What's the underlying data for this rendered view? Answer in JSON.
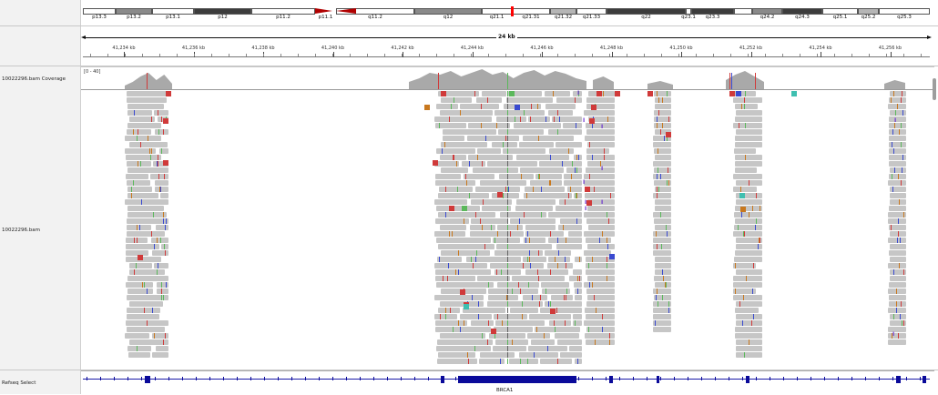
{
  "tracks": {
    "coverage_label": "10022296.bam Coverage",
    "coverage_range": "[0 - 40]",
    "alignment_label": "10022296.bam",
    "refseq_label": "Refseq Select"
  },
  "ideogram": {
    "bands": [
      {
        "label": "p13.3",
        "start": 0,
        "end": 36,
        "color": "#ffffff"
      },
      {
        "label": "p13.2",
        "start": 36,
        "end": 76,
        "color": "#8a8a8a"
      },
      {
        "label": "p13.1",
        "start": 76,
        "end": 122,
        "color": "#ffffff"
      },
      {
        "label": "p12",
        "start": 122,
        "end": 185,
        "color": "#3c3c3c"
      },
      {
        "label": "p11.2",
        "start": 185,
        "end": 255,
        "color": "#ffffff"
      },
      {
        "label": "p11.1",
        "start": 255,
        "end": 278,
        "color": "#b00000"
      },
      {
        "label": "q11.2",
        "start": 278,
        "end": 364,
        "color": "#ffffff"
      },
      {
        "label": "q12",
        "start": 364,
        "end": 438,
        "color": "#8a8a8a"
      },
      {
        "label": "q21.1",
        "start": 438,
        "end": 471,
        "color": "#ffffff"
      },
      {
        "label": "q21.31",
        "start": 471,
        "end": 513,
        "color": "#ffffff"
      },
      {
        "label": "q21.32",
        "start": 513,
        "end": 542,
        "color": "#b5b5b5"
      },
      {
        "label": "q21.33",
        "start": 542,
        "end": 575,
        "color": "#ffffff"
      },
      {
        "label": "q22",
        "start": 575,
        "end": 662,
        "color": "#3c3c3c"
      },
      {
        "label": "q23.1",
        "start": 662,
        "end": 668,
        "color": "#ffffff"
      },
      {
        "label": "q23.3",
        "start": 668,
        "end": 715,
        "color": "#3c3c3c"
      },
      {
        "label": "",
        "start": 715,
        "end": 735,
        "color": "#ffffff"
      },
      {
        "label": "q24.2",
        "start": 735,
        "end": 768,
        "color": "#8a8a8a"
      },
      {
        "label": "q24.3",
        "start": 768,
        "end": 812,
        "color": "#3c3c3c"
      },
      {
        "label": "q25.1",
        "start": 812,
        "end": 851,
        "color": "#ffffff"
      },
      {
        "label": "q25.2",
        "start": 851,
        "end": 874,
        "color": "#b5b5b5"
      },
      {
        "label": "q25.3",
        "start": 874,
        "end": 930,
        "color": "#ffffff"
      }
    ],
    "current_marker_color": "#ff0000"
  },
  "ruler": {
    "span_label": "24 kb",
    "ticks": [
      "41,234 kb",
      "41,236 kb",
      "41,238 kb",
      "41,240 kb",
      "41,242 kb",
      "41,244 kb",
      "41,246 kb",
      "41,248 kb",
      "41,250 kb",
      "41,252 kb",
      "41,254 kb",
      "41,256 kb"
    ]
  },
  "gene": {
    "name": "BRCA1",
    "color": "#0a0a9a"
  },
  "colors": {
    "read_gray": "#c6c6c6",
    "coverage_gray": "#a9a9a9",
    "mismatch_red": "#d03a3a",
    "mismatch_green": "#5bb85b",
    "mismatch_blue": "#3a4ad0",
    "mismatch_orange": "#c8781e",
    "insertion_purple": "#6a2fd0",
    "teal": "#3fbfb0"
  }
}
